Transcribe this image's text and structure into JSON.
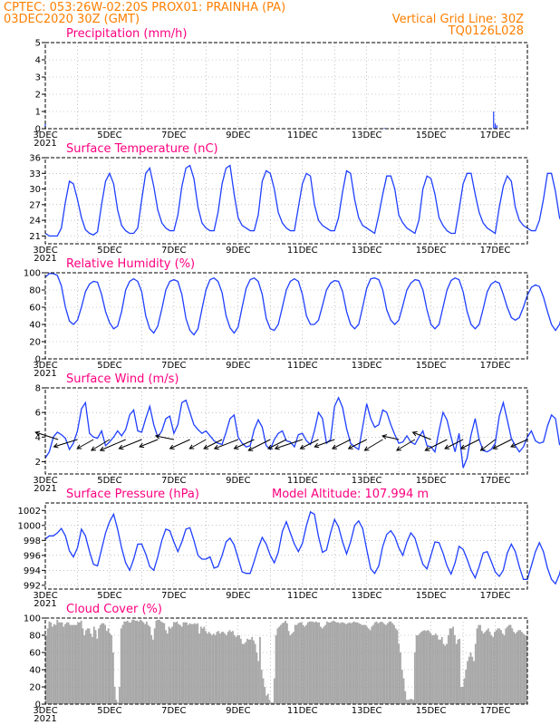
{
  "header": {
    "line1_left": "CPTEC:   053:26W-02:20S   PROX01: PRAINHA (PA)",
    "line2_left": "03DEC2020 30Z (GMT)",
    "line2_right": "Vertical Grid Line: 30Z",
    "line3_right": "TQ0126L028"
  },
  "colors": {
    "header": "#ff7f00",
    "title": "#ff0080",
    "series": "#1f3fff",
    "cloud": "#a8a8a8"
  },
  "x_axis": {
    "labels": [
      "3DEC",
      "5DEC",
      "7DEC",
      "9DEC",
      "11DEC",
      "13DEC",
      "15DEC",
      "17DEC"
    ],
    "range_days": [
      0,
      15
    ],
    "clipped_tick": "2021"
  },
  "chart_data": [
    {
      "type": "bar",
      "key": "precip",
      "title": "Precipitation (mm/h)",
      "ylim": [
        0,
        5
      ],
      "yticks": [
        0,
        1,
        2,
        3,
        4,
        5
      ],
      "x": [
        0.0,
        10.55,
        13.95,
        14.0,
        14.05
      ],
      "values": [
        0.3,
        0.05,
        1.0,
        0.3,
        0.2
      ]
    },
    {
      "type": "line",
      "key": "temp",
      "title": "Surface Temperature (nC)",
      "ylim": [
        19.5,
        36
      ],
      "yticks": [
        21,
        24,
        27,
        30,
        33,
        36
      ],
      "x_step_days": 0.125,
      "values": [
        21.5,
        21,
        21,
        21,
        22.5,
        27.5,
        31.5,
        31,
        28,
        24.5,
        22.2,
        21.5,
        21.2,
        21.8,
        27,
        31.5,
        33,
        31,
        26,
        23,
        22,
        21.5,
        21.5,
        22.5,
        28,
        33,
        34,
        30.5,
        26,
        23.5,
        22.5,
        22,
        22,
        25,
        30.5,
        34,
        34.5,
        32,
        26.5,
        23.5,
        22.5,
        22,
        22,
        25.5,
        31,
        34,
        34.5,
        29,
        24.5,
        23,
        22.5,
        22,
        22,
        25,
        31.5,
        33.5,
        33,
        30,
        25.5,
        23.5,
        22.5,
        22,
        22,
        26.5,
        31,
        33,
        32.5,
        27,
        24,
        23,
        22.5,
        22,
        22,
        24.5,
        29.5,
        33.5,
        33,
        28,
        24.5,
        23,
        22.5,
        22,
        21.5,
        25,
        29,
        32.5,
        32.5,
        30,
        25,
        23.5,
        22.5,
        22,
        21.5,
        24,
        30,
        32.5,
        32,
        29,
        24.5,
        23,
        22,
        21.5,
        21.5,
        26,
        31,
        33,
        33,
        29,
        25.5,
        23.5,
        22.5,
        22,
        21.5,
        26.5,
        30.5,
        32.5,
        31.5,
        26.5,
        24,
        23,
        22.5,
        22,
        22,
        24,
        28,
        33,
        33,
        29.5,
        24.5,
        23,
        22.5,
        22,
        22,
        26.5,
        32,
        34.5,
        31.5,
        26,
        23.5,
        22.5,
        22.5,
        22,
        22,
        26,
        30.5,
        33,
        33.5,
        30.5
      ]
    },
    {
      "type": "line",
      "key": "rh",
      "title": "Relative Humidity (%)",
      "ylim": [
        0,
        100
      ],
      "yticks": [
        0,
        20,
        40,
        60,
        80,
        100
      ],
      "x_step_days": 0.125,
      "values": [
        95,
        99,
        99,
        97,
        85,
        60,
        44,
        40,
        45,
        60,
        78,
        87,
        90,
        89,
        75,
        55,
        42,
        35,
        38,
        55,
        80,
        90,
        93,
        90,
        78,
        50,
        35,
        30,
        38,
        58,
        80,
        90,
        92,
        90,
        75,
        47,
        33,
        28,
        35,
        58,
        80,
        92,
        94,
        90,
        77,
        50,
        36,
        30,
        37,
        60,
        82,
        92,
        94,
        90,
        75,
        47,
        35,
        33,
        40,
        60,
        80,
        90,
        93,
        90,
        75,
        50,
        40,
        40,
        45,
        62,
        80,
        88,
        91,
        90,
        78,
        55,
        40,
        35,
        40,
        60,
        82,
        93,
        94,
        92,
        80,
        57,
        45,
        40,
        45,
        62,
        80,
        88,
        92,
        91,
        80,
        57,
        40,
        35,
        40,
        60,
        80,
        91,
        94,
        92,
        78,
        55,
        40,
        35,
        40,
        58,
        78,
        87,
        90,
        88,
        75,
        60,
        48,
        45,
        48,
        60,
        74,
        83,
        86,
        84,
        72,
        55,
        40,
        33,
        40,
        58,
        78,
        88,
        90,
        86,
        72,
        50,
        33,
        29,
        38,
        60,
        80,
        88,
        91,
        86,
        72,
        57,
        45,
        40,
        43,
        48
      ]
    },
    {
      "type": "line",
      "key": "wind",
      "title": "Surface Wind (m/s)",
      "ylim": [
        1,
        8
      ],
      "yticks": [
        2,
        4,
        6,
        8
      ],
      "x_step_days": 0.125,
      "values": [
        2.3,
        2.8,
        4.0,
        4.4,
        4.2,
        3.9,
        3.0,
        3.5,
        4.5,
        6.3,
        6.8,
        4.3,
        4.0,
        3.9,
        4.5,
        3.3,
        3.6,
        4.0,
        4.5,
        4.1,
        4.6,
        5.8,
        6.2,
        4.5,
        4.4,
        5.5,
        6.5,
        5.0,
        4.0,
        4.5,
        5.5,
        5.7,
        4.3,
        5.0,
        6.8,
        7.0,
        6.0,
        5.0,
        4.6,
        4.3,
        4.5,
        4.1,
        3.7,
        3.5,
        3.4,
        4.4,
        5.5,
        5.8,
        4.0,
        3.5,
        3.2,
        3.3,
        4.6,
        5.4,
        4.8,
        3.3,
        3.0,
        3.8,
        4.3,
        4.5,
        3.7,
        3.6,
        3.2,
        4.2,
        4.3,
        3.7,
        3.4,
        4.5,
        6.0,
        5.5,
        3.5,
        3.8,
        6.5,
        7.2,
        6.4,
        4.7,
        3.5,
        3.2,
        3.0,
        4.8,
        6.7,
        5.5,
        4.8,
        5.0,
        6.2,
        6.0,
        5.0,
        4.2,
        3.5,
        3.6,
        4.1,
        3.6,
        3.4,
        4.0,
        4.5,
        3.3,
        3.2,
        2.8,
        4.5,
        6.0,
        5.4,
        4.0,
        2.8,
        4.3,
        1.5,
        2.3,
        4.2,
        5.5,
        3.8,
        2.9,
        2.8,
        3.0,
        3.5,
        5.7,
        6.8,
        5.4,
        3.9,
        3.3,
        2.8,
        3.2,
        4.0,
        4.5,
        3.7,
        3.5,
        3.6,
        4.9,
        5.8,
        5.5,
        3.4,
        3.6,
        4.0,
        3.8,
        3.2,
        2.5,
        4.0,
        4.5,
        3.8,
        3.5,
        3.4,
        3.0,
        4.1,
        4.3,
        3.9,
        4.2,
        3.3,
        2.8,
        2.1,
        1.5,
        2.5,
        3.5
      ],
      "barbs": {
        "x_days": [
          0.4,
          1.0,
          1.5,
          2.0,
          2.5,
          3.0,
          3.5,
          4.0,
          4.5,
          5.0,
          5.5,
          6.0,
          6.5,
          7.0,
          7.5,
          8.0,
          8.5,
          9.0,
          9.5,
          10.0,
          10.5,
          11.0,
          11.5,
          12.0,
          12.5,
          13.0,
          13.5,
          14.0,
          14.5,
          15.0
        ],
        "dx": [
          25,
          26,
          18,
          20,
          28,
          25,
          20,
          20,
          22,
          18,
          20,
          26,
          22,
          24,
          20,
          30,
          20,
          22,
          20,
          20,
          20,
          18,
          20,
          20,
          24,
          20,
          20,
          16,
          20,
          18
        ],
        "dy": [
          -8,
          8,
          10,
          12,
          12,
          10,
          8,
          -4,
          10,
          10,
          10,
          10,
          10,
          12,
          10,
          10,
          10,
          8,
          10,
          10,
          12,
          -4,
          12,
          -8,
          12,
          10,
          10,
          12,
          10,
          8
        ]
      }
    },
    {
      "type": "line",
      "key": "pres",
      "title": "Surface Pressure (hPa)",
      "extra": "Model Altitude: 107.994 m",
      "ylim": [
        991.5,
        1003
      ],
      "yticks": [
        992,
        994,
        996,
        998,
        1000,
        1002
      ],
      "x_step_days": 0.125,
      "values": [
        998.2,
        998.6,
        998.6,
        999,
        999.6,
        998.6,
        996.6,
        995.8,
        997,
        999.5,
        998.6,
        996.5,
        994.8,
        994.6,
        996.8,
        999,
        1000.5,
        1001.5,
        999.5,
        997,
        995,
        994,
        995.5,
        997.5,
        997.5,
        996.2,
        994.5,
        994,
        995.8,
        998,
        999.5,
        999.3,
        997.8,
        996.5,
        997.8,
        999.5,
        999.7,
        998,
        996,
        995.5,
        995.5,
        995.8,
        994.3,
        994.5,
        996,
        997.8,
        998.3,
        997.4,
        995.6,
        993.8,
        993.6,
        993.6,
        995.2,
        997,
        998.4,
        997.5,
        996,
        995,
        996.4,
        999.2,
        1000.5,
        999,
        997.5,
        996.5,
        997.6,
        1000,
        1001.8,
        1001.5,
        998.5,
        996.4,
        996.7,
        999,
        1000.8,
        999.8,
        997.8,
        996.2,
        997.8,
        1000,
        1000.6,
        999.6,
        996.8,
        994.2,
        993.6,
        994.6,
        997.2,
        998.8,
        999.3,
        998.5,
        997,
        996,
        997.8,
        999,
        998.3,
        996.5,
        994.8,
        994.2,
        996,
        997.8,
        997.7,
        996.3,
        994.6,
        993.5,
        995,
        997.2,
        996.8,
        995.5,
        994,
        993,
        994.5,
        996.3,
        996.5,
        995.2,
        993.8,
        993.2,
        994,
        996.3,
        997.5,
        996.5,
        994.5,
        992.8,
        992.8,
        994.6,
        996.5,
        997.7,
        996.5,
        994.3,
        992.8,
        992.2,
        993.5,
        995.8,
        996.8,
        997.8,
        996.9,
        995.5,
        994.2,
        993.6,
        993.6,
        995,
        996.8,
        997.8,
        997.5,
        997,
        996.5,
        995.2,
        993.5,
        992.5,
        992.6,
        994.5,
        995.3,
        993.7,
        991.8,
        994
      ]
    },
    {
      "type": "bar",
      "key": "cloud",
      "title": "Cloud Cover (%)",
      "ylim": [
        0,
        100
      ],
      "yticks": [
        0,
        20,
        40,
        60,
        80,
        100
      ],
      "x_step_days": 0.0625,
      "values": [
        80,
        88,
        96,
        95,
        90,
        93,
        92,
        98,
        95,
        95,
        95,
        90,
        93,
        95,
        95,
        92,
        92,
        92,
        92,
        92,
        95,
        95,
        97,
        88,
        80,
        86,
        88,
        88,
        82,
        78,
        90,
        86,
        76,
        88,
        92,
        94,
        94,
        92,
        85,
        88,
        82,
        80,
        60,
        20,
        5,
        2,
        20,
        88,
        92,
        96,
        96,
        97,
        95,
        95,
        98,
        98,
        97,
        97,
        96,
        98,
        97,
        95,
        93,
        96,
        92,
        90,
        80,
        75,
        88,
        97,
        98,
        98,
        96,
        95,
        94,
        86,
        82,
        90,
        88,
        90,
        95,
        95,
        96,
        93,
        92,
        90,
        95,
        95,
        95,
        92,
        94,
        93,
        93,
        94,
        93,
        94,
        82,
        90,
        88,
        90,
        85,
        82,
        84,
        82,
        80,
        82,
        80,
        84,
        85,
        82,
        84,
        84,
        82,
        80,
        84,
        86,
        84,
        85,
        80,
        78,
        80,
        80,
        76,
        70,
        70,
        72,
        76,
        75,
        75,
        78,
        74,
        70,
        60,
        50,
        78,
        40,
        30,
        20,
        10,
        12,
        5,
        2,
        2,
        30,
        80,
        88,
        90,
        92,
        94,
        95,
        97,
        94,
        85,
        80,
        82,
        84,
        92,
        92,
        94,
        95,
        95,
        92,
        90,
        92,
        95,
        96,
        96,
        96,
        95,
        96,
        95,
        95,
        90,
        88,
        90,
        92,
        96,
        95,
        95,
        96,
        97,
        96,
        95,
        95,
        94,
        95,
        95,
        94,
        93,
        94,
        95,
        94,
        95,
        96,
        95,
        95,
        94,
        93,
        92,
        92,
        92,
        90,
        88,
        86,
        90,
        92,
        95,
        96,
        94,
        95,
        96,
        95,
        93,
        92,
        94,
        96,
        96,
        94,
        92,
        88,
        86,
        70,
        60,
        40,
        30,
        15,
        5,
        5,
        6,
        6,
        5,
        60,
        80,
        80,
        82,
        84,
        85,
        86,
        85,
        86,
        85,
        82,
        80,
        80,
        82,
        80,
        75,
        75,
        78,
        70,
        68,
        70,
        80,
        88,
        88,
        90,
        80,
        70,
        75,
        76,
        20,
        20,
        30,
        40,
        50,
        55,
        60,
        55,
        50,
        70,
        88,
        92,
        92,
        85,
        82,
        84,
        86,
        88,
        84,
        80,
        78,
        84,
        86,
        88,
        88,
        86,
        82,
        80,
        88,
        90,
        92,
        92,
        88,
        84,
        82,
        84,
        86,
        86,
        84,
        82,
        80,
        80
      ]
    }
  ]
}
